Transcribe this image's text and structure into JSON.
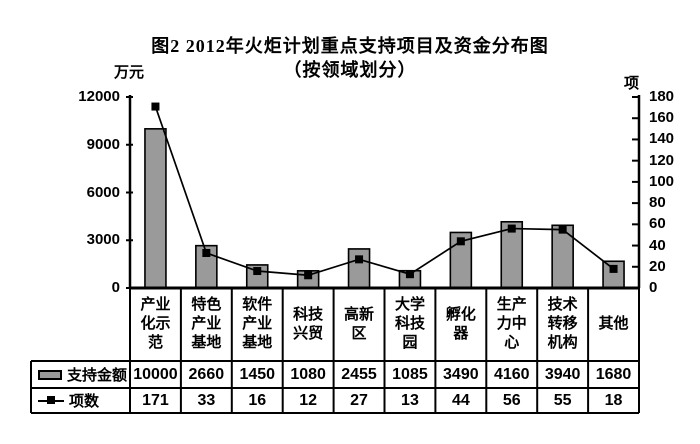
{
  "chart": {
    "title": "图2 2012年火炬计划重点支持项目及资金分布图",
    "subtitle": "（按领域划分）",
    "left_axis_unit": "万元",
    "right_axis_unit": "项"
  },
  "chart_data": {
    "type": "bar",
    "subtype": "combo-bar-line-with-data-table",
    "title": "图2 2012年火炬计划重点支持项目及资金分布图",
    "subtitle": "（按领域划分）",
    "categories": [
      "产业化示范",
      "特色产业基地",
      "软件产业基地",
      "科技兴贸",
      "高新区",
      "大学科技园",
      "孵化器",
      "生产力中心",
      "技术转移机构",
      "其他"
    ],
    "category_display_lines": [
      [
        "产业",
        "化示",
        "范"
      ],
      [
        "特色",
        "产业",
        "基地"
      ],
      [
        "软件",
        "产业",
        "基地"
      ],
      [
        "科技",
        "兴贸"
      ],
      [
        "高新",
        "区"
      ],
      [
        "大学",
        "科技",
        "园"
      ],
      [
        "孵化",
        "器"
      ],
      [
        "生产",
        "力中",
        "心"
      ],
      [
        "技术",
        "转移",
        "机构"
      ],
      [
        "其他"
      ]
    ],
    "series": [
      {
        "name": "支持金额",
        "type": "bar",
        "axis": "left",
        "unit": "万元",
        "color": "#9a9a9a",
        "border_color": "#000000",
        "values": [
          10000,
          2660,
          1450,
          1080,
          2455,
          1085,
          3490,
          4160,
          3940,
          1680
        ]
      },
      {
        "name": "项数",
        "type": "line",
        "axis": "right",
        "unit": "项",
        "color": "#000000",
        "marker": "square",
        "values": [
          171,
          33,
          16,
          12,
          27,
          13,
          44,
          56,
          55,
          18
        ]
      }
    ],
    "left_axis": {
      "label": "万元",
      "min": 0,
      "max": 12000,
      "step": 3000,
      "ticks": [
        0,
        3000,
        6000,
        9000,
        12000
      ]
    },
    "right_axis": {
      "label": "项",
      "min": 0,
      "max": 180,
      "step": 20,
      "ticks": [
        0,
        20,
        40,
        60,
        80,
        100,
        120,
        140,
        160,
        180
      ]
    },
    "grid": false,
    "legend_position": "bottom-data-table"
  }
}
